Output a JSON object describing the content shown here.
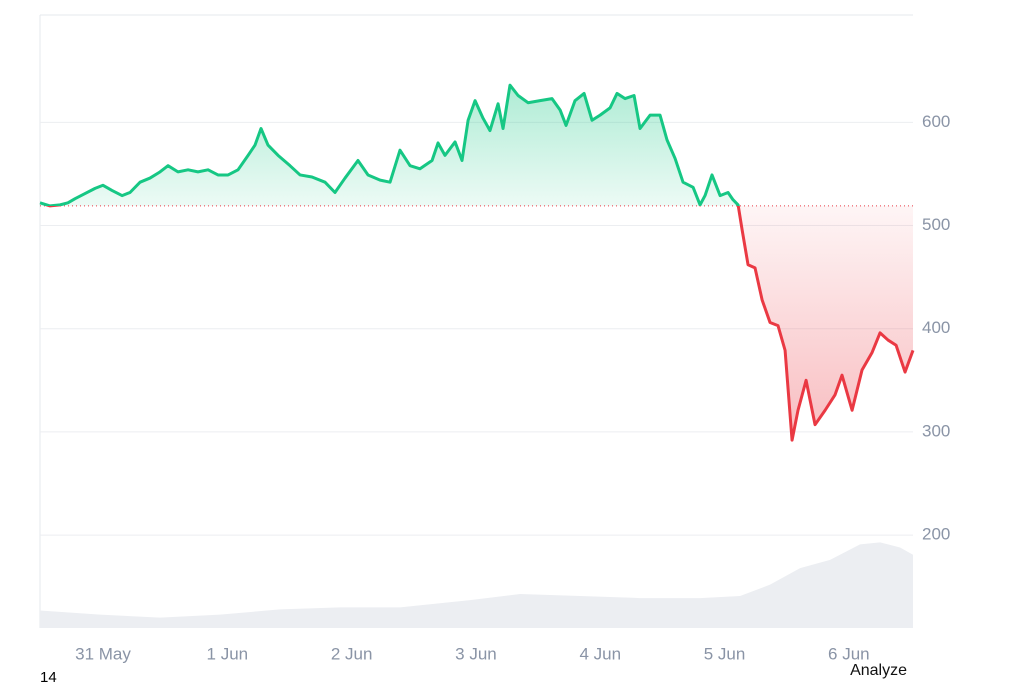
{
  "chart_data": {
    "type": "line",
    "xlim": [
      -0.507,
      6.516
    ],
    "ylim": [
      110,
      704
    ],
    "xticks": [
      {
        "value": 0,
        "label": "31 May"
      },
      {
        "value": 1,
        "label": "1 Jun"
      },
      {
        "value": 2,
        "label": "2 Jun"
      },
      {
        "value": 3,
        "label": "3 Jun"
      },
      {
        "value": 4,
        "label": "4 Jun"
      },
      {
        "value": 5,
        "label": "5 Jun"
      },
      {
        "value": 6,
        "label": "6 Jun"
      }
    ],
    "yticks": [
      200,
      300,
      400,
      500,
      600
    ],
    "grid": true,
    "baseline": 519,
    "series": [
      {
        "color_above": "#16c784",
        "color_below": "#ea3943",
        "x": [
          -0.507,
          -0.426,
          -0.346,
          -0.282,
          -0.225,
          -0.145,
          -0.064,
          0,
          0.072,
          0.153,
          0.217,
          0.298,
          0.378,
          0.459,
          0.523,
          0.603,
          0.684,
          0.764,
          0.845,
          0.925,
          1.006,
          1.086,
          1.167,
          1.223,
          1.271,
          1.327,
          1.408,
          1.504,
          1.585,
          1.681,
          1.786,
          1.866,
          1.947,
          2.051,
          2.132,
          2.229,
          2.309,
          2.389,
          2.47,
          2.55,
          2.647,
          2.695,
          2.751,
          2.832,
          2.888,
          2.937,
          2.993,
          3.057,
          3.113,
          3.178,
          3.218,
          3.274,
          3.339,
          3.419,
          3.516,
          3.612,
          3.677,
          3.725,
          3.797,
          3.87,
          3.934,
          3.999,
          4.079,
          4.135,
          4.2,
          4.272,
          4.32,
          4.401,
          4.481,
          4.537,
          4.602,
          4.666,
          4.747,
          4.803,
          4.843,
          4.899,
          4.964,
          5.028,
          5.068,
          5.109,
          5.141,
          5.189,
          5.245,
          5.302,
          5.366,
          5.43,
          5.487,
          5.543,
          5.591,
          5.656,
          5.728,
          5.809,
          5.889,
          5.945,
          6.026,
          6.106,
          6.187,
          6.251,
          6.315,
          6.38,
          6.452,
          6.516
        ],
        "values": [
          522,
          519,
          520,
          522,
          526,
          531,
          536,
          539,
          534,
          529,
          532,
          542,
          546,
          552,
          558,
          552,
          554,
          552,
          554,
          549,
          549,
          554,
          568,
          578,
          594,
          578,
          568,
          558,
          549,
          547,
          542,
          532,
          546,
          563,
          549,
          544,
          542,
          573,
          558,
          555,
          563,
          580,
          568,
          581,
          563,
          602,
          621,
          604,
          592,
          618,
          594,
          636,
          626,
          619,
          621,
          623,
          612,
          597,
          621,
          628,
          602,
          607,
          614,
          628,
          623,
          626,
          594,
          607,
          607,
          583,
          565,
          542,
          537,
          520,
          529,
          549,
          529,
          532,
          525,
          520,
          496,
          462,
          459,
          428,
          406,
          403,
          379,
          292,
          321,
          350,
          307,
          321,
          336,
          355,
          321,
          360,
          377,
          396,
          389,
          384,
          358,
          379
        ]
      }
    ],
    "volume": {
      "color": "#eceef2",
      "x": [
        -0.507,
        -0.024,
        0.459,
        0.941,
        1.424,
        1.907,
        2.389,
        2.953,
        3.355,
        3.838,
        4.32,
        4.803,
        5.125,
        5.366,
        5.608,
        5.849,
        6.09,
        6.251,
        6.412,
        6.516
      ],
      "values": [
        127,
        123,
        120,
        123,
        128,
        130,
        130,
        137,
        143,
        141,
        139,
        139,
        141,
        152,
        168,
        176,
        191,
        193,
        188,
        181
      ]
    }
  },
  "labels": {
    "left": "14",
    "right": "Analyze"
  }
}
